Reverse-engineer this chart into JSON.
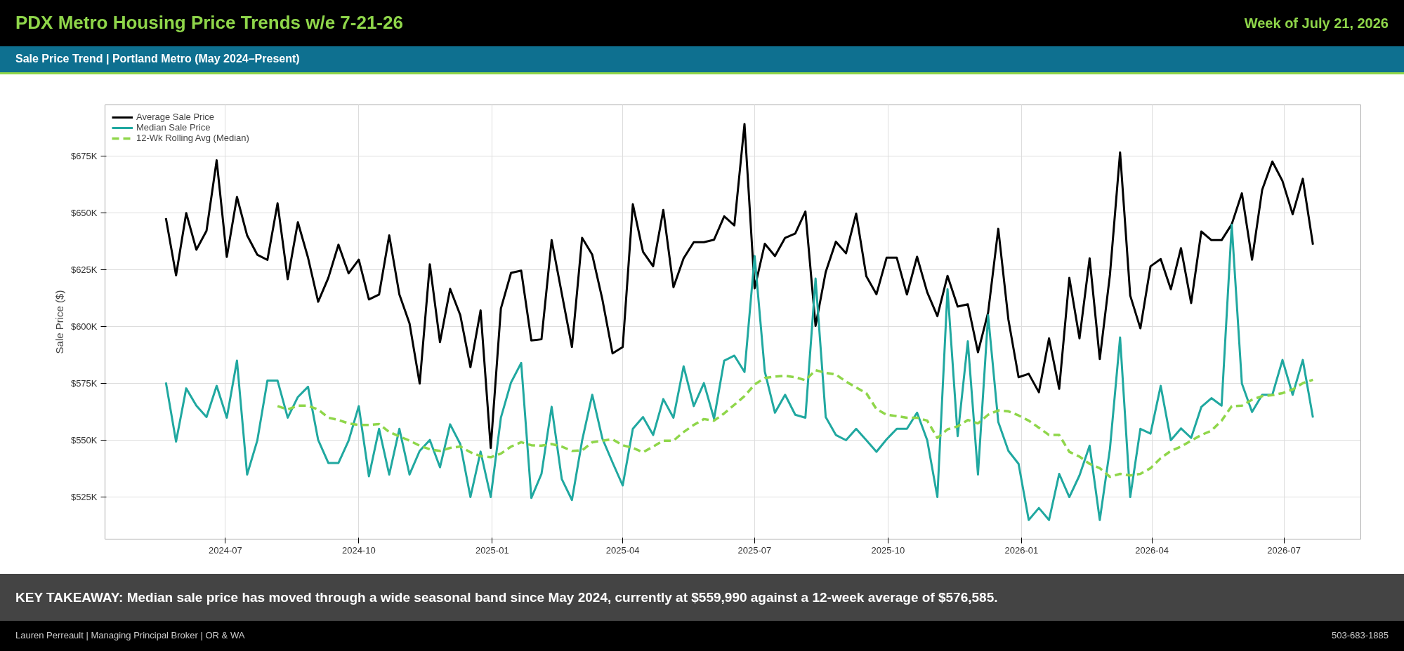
{
  "chart_data": {
    "type": "line",
    "title": "PDX Metro Housing Price Trends w/e 7-21-26",
    "subtitle": "Sale Price Trend | Portland Metro (May 2024–Present)",
    "ylabel": "Sale Price ($)",
    "annotations": [
      "Week of July 21, 2026",
      "KEY TAKEAWAY: Median sale price has moved through a wide seasonal band since May 2024, currently at $559,990 against a 12-week average of $576,585.",
      "Lauren Perreault | Managing Principal Broker | OR & WA",
      "503-683-1885"
    ],
    "x": [
      "2024-05-21",
      "2024-05-28",
      "2024-06-04",
      "2024-06-11",
      "2024-06-18",
      "2024-06-25",
      "2024-07-02",
      "2024-07-09",
      "2024-07-16",
      "2024-07-23",
      "2024-07-30",
      "2024-08-06",
      "2024-08-13",
      "2024-08-20",
      "2024-08-27",
      "2024-09-03",
      "2024-09-10",
      "2024-09-17",
      "2024-09-24",
      "2024-10-01",
      "2024-10-08",
      "2024-10-15",
      "2024-10-22",
      "2024-10-29",
      "2024-11-05",
      "2024-11-12",
      "2024-11-19",
      "2024-11-26",
      "2024-12-03",
      "2024-12-10",
      "2024-12-17",
      "2024-12-24",
      "2024-12-31",
      "2025-01-07",
      "2025-01-14",
      "2025-01-21",
      "2025-01-28",
      "2025-02-04",
      "2025-02-11",
      "2025-02-18",
      "2025-02-25",
      "2025-03-04",
      "2025-03-11",
      "2025-03-18",
      "2025-03-25",
      "2025-04-01",
      "2025-04-08",
      "2025-04-15",
      "2025-04-22",
      "2025-04-29",
      "2025-05-06",
      "2025-05-13",
      "2025-05-20",
      "2025-05-27",
      "2025-06-03",
      "2025-06-10",
      "2025-06-17",
      "2025-06-24",
      "2025-07-01",
      "2025-07-08",
      "2025-07-15",
      "2025-07-22",
      "2025-07-29",
      "2025-08-05",
      "2025-08-12",
      "2025-08-19",
      "2025-08-26",
      "2025-09-02",
      "2025-09-09",
      "2025-09-16",
      "2025-09-23",
      "2025-09-30",
      "2025-10-07",
      "2025-10-14",
      "2025-10-21",
      "2025-10-28",
      "2025-11-04",
      "2025-11-11",
      "2025-11-18",
      "2025-11-25",
      "2025-12-02",
      "2025-12-09",
      "2025-12-16",
      "2025-12-23",
      "2025-12-30",
      "2026-01-06",
      "2026-01-13",
      "2026-01-20",
      "2026-01-27",
      "2026-02-03",
      "2026-02-10",
      "2026-02-17",
      "2026-02-24",
      "2026-03-03",
      "2026-03-10",
      "2026-03-17",
      "2026-03-24",
      "2026-03-31",
      "2026-04-07",
      "2026-04-14",
      "2026-04-21",
      "2026-04-28",
      "2026-05-05",
      "2026-05-12",
      "2026-05-19",
      "2026-05-26",
      "2026-06-02",
      "2026-06-09",
      "2026-06-16",
      "2026-06-23",
      "2026-06-30",
      "2026-07-07",
      "2026-07-14",
      "2026-07-21"
    ],
    "series": [
      {
        "name": "Average Sale Price",
        "color": "#000000",
        "values": [
          647700,
          622500,
          649900,
          633800,
          642100,
          673100,
          630600,
          657000,
          640100,
          631600,
          629300,
          654200,
          620800,
          645900,
          630300,
          610900,
          621400,
          636000,
          623400,
          629400,
          611900,
          614100,
          640100,
          614100,
          601400,
          574900,
          627400,
          593100,
          616600,
          605000,
          582100,
          607100,
          546600,
          607900,
          623600,
          624600,
          593900,
          594400,
          638000,
          614500,
          591000,
          639000,
          631600,
          611900,
          588200,
          591000,
          653800,
          632900,
          626500,
          651300,
          617300,
          630000,
          637100,
          637100,
          638200,
          648500,
          644500,
          689100,
          616800,
          636400,
          631000,
          639000,
          640900,
          650600,
          600300,
          624000,
          637300,
          632200,
          649700,
          622100,
          614200,
          630300,
          630300,
          614100,
          630700,
          615100,
          604600,
          622300,
          608800,
          609800,
          588700,
          606200,
          643000,
          603000,
          577700,
          579200,
          571100,
          594800,
          572600,
          621400,
          594800,
          630000,
          585700,
          622700,
          676600,
          613600,
          599200,
          626500,
          629700,
          616400,
          634500,
          610300,
          641800,
          638000,
          638000,
          645000,
          658600,
          629400,
          660200,
          672600,
          664000,
          649400,
          665000,
          636000
        ]
      },
      {
        "name": "Median Sale Price",
        "color": "#20a8a0",
        "values": [
          575400,
          549400,
          572800,
          565200,
          560200,
          573900,
          559900,
          585000,
          534900,
          549800,
          576200,
          576200,
          559900,
          569000,
          573500,
          550100,
          540000,
          540000,
          549800,
          565000,
          534100,
          555000,
          534900,
          555000,
          534900,
          545300,
          550100,
          538100,
          557000,
          548300,
          525000,
          545000,
          525000,
          559900,
          575400,
          584000,
          524600,
          535200,
          564700,
          532900,
          523700,
          549800,
          570000,
          550700,
          540200,
          530100,
          555000,
          560200,
          552300,
          568100,
          559900,
          582500,
          565000,
          575100,
          559500,
          585000,
          587200,
          580000,
          631000,
          580200,
          562100,
          570000,
          561200,
          559900,
          621100,
          560200,
          552300,
          550000,
          555000,
          550000,
          544900,
          550400,
          555000,
          555000,
          562100,
          550000,
          525000,
          616400,
          551800,
          593500,
          534900,
          605000,
          558000,
          545300,
          539600,
          514900,
          520200,
          514900,
          535200,
          525000,
          534500,
          547600,
          514900,
          546200,
          595200,
          525000,
          555000,
          552900,
          573900,
          550000,
          555200,
          551000,
          564600,
          568500,
          565200,
          644700,
          574900,
          562400,
          570000,
          570000,
          585300,
          570000,
          585300,
          559990
        ]
      },
      {
        "name": "12-Wk Rolling Avg (Median)",
        "color": "#8fd64a",
        "line_style": "dashed",
        "values": [
          null,
          null,
          null,
          null,
          null,
          null,
          null,
          null,
          null,
          null,
          null,
          565000,
          563500,
          565200,
          565200,
          563500,
          559900,
          558900,
          557400,
          556700,
          556700,
          557100,
          553600,
          551700,
          549800,
          547600,
          546000,
          545300,
          546600,
          547200,
          544700,
          543000,
          542500,
          544100,
          547200,
          549100,
          547800,
          547600,
          548300,
          547200,
          545300,
          545500,
          549100,
          549800,
          550400,
          547800,
          546600,
          544700,
          547200,
          549800,
          549800,
          553600,
          556700,
          559300,
          558600,
          561800,
          565600,
          569400,
          574500,
          577400,
          578000,
          578300,
          577700,
          576400,
          580800,
          579600,
          578900,
          575800,
          573200,
          570700,
          563700,
          561200,
          560600,
          559900,
          559900,
          558600,
          551000,
          554800,
          556100,
          558900,
          557400,
          561200,
          563100,
          562700,
          560900,
          558600,
          555500,
          552300,
          552300,
          544900,
          542800,
          539600,
          537700,
          533900,
          535200,
          534500,
          535200,
          537700,
          542100,
          545300,
          547200,
          549800,
          552300,
          554200,
          558600,
          565000,
          565200,
          567800,
          569400,
          569800,
          570700,
          572300,
          575100,
          576585
        ]
      }
    ],
    "xlim": [
      "2024-04-09",
      "2026-08-23"
    ],
    "xticks": [
      "2024-07",
      "2024-10",
      "2025-01",
      "2025-04",
      "2025-07",
      "2025-10",
      "2026-01",
      "2026-04",
      "2026-07"
    ],
    "ylim": [
      506500,
      697500
    ],
    "yticks": [
      {
        "value": 525000,
        "label": "$525K"
      },
      {
        "value": 550000,
        "label": "$550K"
      },
      {
        "value": 575000,
        "label": "$575K"
      },
      {
        "value": 600000,
        "label": "$600K"
      },
      {
        "value": 625000,
        "label": "$625K"
      },
      {
        "value": 650000,
        "label": "$650K"
      },
      {
        "value": 675000,
        "label": "$675K"
      }
    ],
    "grid": true,
    "legend": "top left",
    "line_style": "solid",
    "marker": "none"
  }
}
